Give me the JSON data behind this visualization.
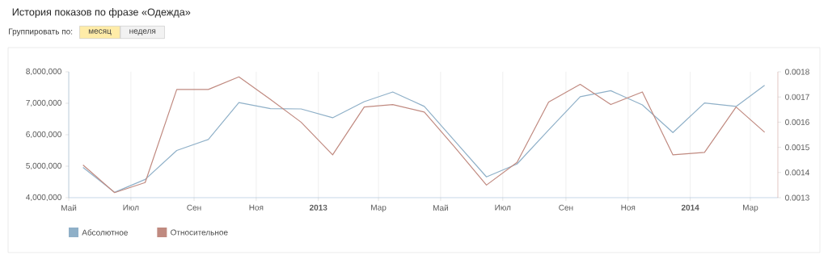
{
  "chart_data": {
    "type": "line",
    "title": "История показов по фразе «Одежда»",
    "annotations": [
      "Группировать по:",
      "месяц",
      "неделя"
    ],
    "x": [
      "2012-05-15",
      "2012-06-15",
      "2012-07-15",
      "2012-08-15",
      "2012-09-15",
      "2012-10-15",
      "2012-11-15",
      "2012-12-15",
      "2013-01-15",
      "2013-02-15",
      "2013-03-15",
      "2013-04-15",
      "2013-05-15",
      "2013-06-15",
      "2013-07-15",
      "2013-08-15",
      "2013-09-15",
      "2013-10-15",
      "2013-11-15",
      "2013-12-15",
      "2014-01-15",
      "2014-02-15",
      "2014-03-15"
    ],
    "series": [
      {
        "name": "Абсолютное",
        "color": "#8fb0c8",
        "values": [
          4960000,
          4170000,
          4580000,
          5500000,
          5850000,
          7020000,
          6830000,
          6820000,
          6540000,
          7050000,
          7360000,
          6900000,
          5800000,
          4660000,
          5070000,
          6150000,
          7210000,
          7400000,
          6950000,
          6070000,
          7010000,
          6900000,
          7570000
        ]
      },
      {
        "name": "Относительное",
        "color": "#c08a80",
        "axis": "y2",
        "values": [
          0.00143,
          0.00132,
          0.00136,
          0.00173,
          0.00173,
          0.00178,
          0.00169,
          0.0016,
          0.00147,
          0.00166,
          0.00167,
          0.00164,
          0.0015,
          0.00135,
          0.00144,
          0.00168,
          0.00175,
          0.00167,
          0.00172,
          0.00147,
          0.00148,
          0.00166,
          0.00156
        ]
      }
    ],
    "xlim": [
      "2012-05-01",
      "2014-03-28"
    ],
    "xticks": [
      {
        "value": "2012-05-01",
        "label": "Май"
      },
      {
        "value": "2012-07-01",
        "label": "Июл"
      },
      {
        "value": "2012-09-01",
        "label": "Сен"
      },
      {
        "value": "2012-11-01",
        "label": "Ноя"
      },
      {
        "value": "2013-01-01",
        "label": "2013"
      },
      {
        "value": "2013-03-01",
        "label": "Мар"
      },
      {
        "value": "2013-05-01",
        "label": "Май"
      },
      {
        "value": "2013-07-01",
        "label": "Июл"
      },
      {
        "value": "2013-09-01",
        "label": "Сен"
      },
      {
        "value": "2013-11-01",
        "label": "Ноя"
      },
      {
        "value": "2014-01-01",
        "label": "2014"
      },
      {
        "value": "2014-03-01",
        "label": "Мар"
      }
    ],
    "ylim": [
      4000000,
      8000000
    ],
    "yticks": [
      {
        "value": 4000000,
        "label": "4,000,000"
      },
      {
        "value": 5000000,
        "label": "5,000,000"
      },
      {
        "value": 6000000,
        "label": "6,000,000"
      },
      {
        "value": 7000000,
        "label": "7,000,000"
      },
      {
        "value": 8000000,
        "label": "8,000,000"
      }
    ],
    "y2lim": [
      0.0013,
      0.0018
    ],
    "y2ticks": [
      0.0013,
      0.0014,
      0.0015,
      0.0016,
      0.0017,
      0.0018
    ],
    "grid": "x",
    "legend": "bottom left",
    "marker": "none",
    "line_style": "solid"
  }
}
